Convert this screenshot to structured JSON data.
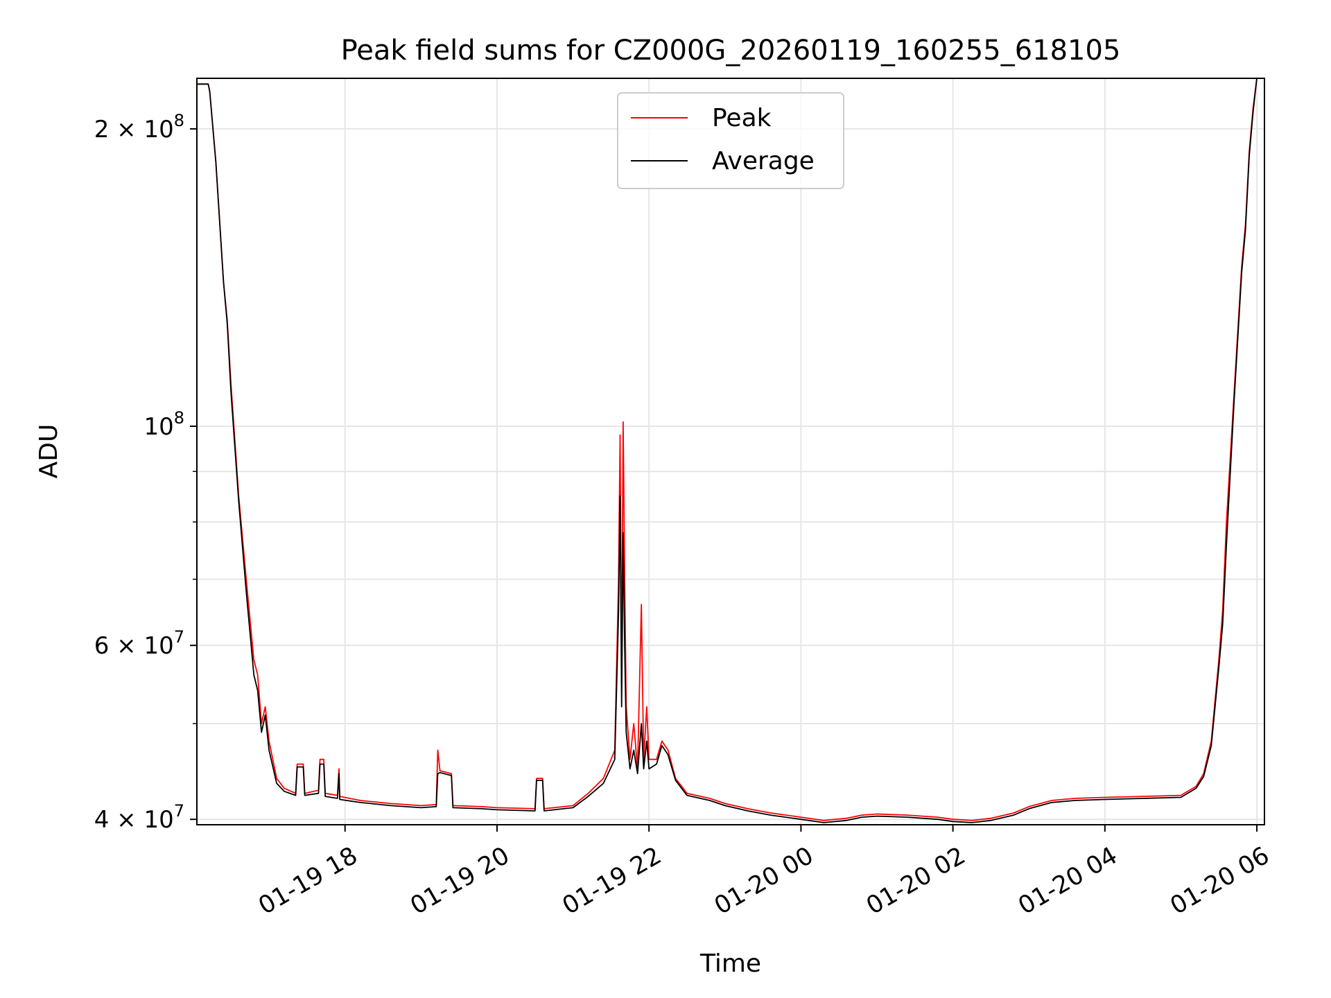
{
  "chart_data": {
    "type": "line",
    "title": "Peak field sums for CZ000G_20260119_160255_618105",
    "xlabel": "Time",
    "ylabel": "ADU",
    "yscale": "log",
    "ylim": [
      39500000,
      225000000
    ],
    "xlim_hours": [
      16.05,
      30.1
    ],
    "grid": true,
    "legend_position": "upper center",
    "x_ticks": [
      {
        "hour": 18,
        "label": "01-19 18"
      },
      {
        "hour": 20,
        "label": "01-19 20"
      },
      {
        "hour": 22,
        "label": "01-19 22"
      },
      {
        "hour": 24,
        "label": "01-20 00"
      },
      {
        "hour": 26,
        "label": "01-20 02"
      },
      {
        "hour": 28,
        "label": "01-20 04"
      },
      {
        "hour": 30,
        "label": "01-20 06"
      }
    ],
    "y_major_ticks": [
      {
        "value": 40000000,
        "mantissa": "4",
        "exp": "7"
      },
      {
        "value": 60000000,
        "mantissa": "6",
        "exp": "7"
      },
      {
        "value": 100000000,
        "mantissa": "",
        "exp": "8"
      },
      {
        "value": 200000000,
        "mantissa": "2",
        "exp": "8"
      }
    ],
    "y_minor_ticks": [
      50000000,
      70000000,
      80000000,
      90000000
    ],
    "x_time_unit": "hours after 2026-01-19 00:00 UTC",
    "series": [
      {
        "name": "Peak",
        "color": "#ff0000",
        "points": [
          [
            16.05,
            222000000
          ],
          [
            16.2,
            222000000
          ],
          [
            16.22,
            218000000
          ],
          [
            16.3,
            185000000
          ],
          [
            16.4,
            140000000
          ],
          [
            16.45,
            128000000
          ],
          [
            16.5,
            110000000
          ],
          [
            16.6,
            85000000
          ],
          [
            16.7,
            70000000
          ],
          [
            16.8,
            58000000
          ],
          [
            16.85,
            56000000
          ],
          [
            16.9,
            50000000
          ],
          [
            16.95,
            52000000
          ],
          [
            17.0,
            48000000
          ],
          [
            17.1,
            44000000
          ],
          [
            17.2,
            43000000
          ],
          [
            17.35,
            42500000
          ],
          [
            17.37,
            45500000
          ],
          [
            17.45,
            45500000
          ],
          [
            17.47,
            42500000
          ],
          [
            17.65,
            42800000
          ],
          [
            17.67,
            46000000
          ],
          [
            17.72,
            46000000
          ],
          [
            17.74,
            42500000
          ],
          [
            17.9,
            42300000
          ],
          [
            17.92,
            45000000
          ],
          [
            17.93,
            42200000
          ],
          [
            18.2,
            41800000
          ],
          [
            18.6,
            41500000
          ],
          [
            19.0,
            41300000
          ],
          [
            19.2,
            41400000
          ],
          [
            19.22,
            47000000
          ],
          [
            19.25,
            44800000
          ],
          [
            19.4,
            44500000
          ],
          [
            19.42,
            41300000
          ],
          [
            19.8,
            41200000
          ],
          [
            20.0,
            41100000
          ],
          [
            20.5,
            41000000
          ],
          [
            20.52,
            44000000
          ],
          [
            20.6,
            44000000
          ],
          [
            20.62,
            41000000
          ],
          [
            21.0,
            41300000
          ],
          [
            21.2,
            42500000
          ],
          [
            21.4,
            44000000
          ],
          [
            21.55,
            47000000
          ],
          [
            21.6,
            70000000
          ],
          [
            21.62,
            98000000
          ],
          [
            21.64,
            55000000
          ],
          [
            21.66,
            101000000
          ],
          [
            21.68,
            70000000
          ],
          [
            21.7,
            52000000
          ],
          [
            21.75,
            46000000
          ],
          [
            21.8,
            50000000
          ],
          [
            21.85,
            45000000
          ],
          [
            21.9,
            66000000
          ],
          [
            21.93,
            46000000
          ],
          [
            21.97,
            52000000
          ],
          [
            22.0,
            46000000
          ],
          [
            22.1,
            46000000
          ],
          [
            22.17,
            48000000
          ],
          [
            22.25,
            47000000
          ],
          [
            22.35,
            44000000
          ],
          [
            22.5,
            42500000
          ],
          [
            22.8,
            42000000
          ],
          [
            23.0,
            41500000
          ],
          [
            23.3,
            41000000
          ],
          [
            23.6,
            40600000
          ],
          [
            24.0,
            40200000
          ],
          [
            24.3,
            39900000
          ],
          [
            24.6,
            40100000
          ],
          [
            24.8,
            40400000
          ],
          [
            25.0,
            40500000
          ],
          [
            25.4,
            40400000
          ],
          [
            25.8,
            40200000
          ],
          [
            26.0,
            40000000
          ],
          [
            26.25,
            39900000
          ],
          [
            26.5,
            40100000
          ],
          [
            26.8,
            40600000
          ],
          [
            27.0,
            41200000
          ],
          [
            27.3,
            41800000
          ],
          [
            27.6,
            42000000
          ],
          [
            28.0,
            42100000
          ],
          [
            28.5,
            42200000
          ],
          [
            29.0,
            42300000
          ],
          [
            29.2,
            43200000
          ],
          [
            29.3,
            44500000
          ],
          [
            29.4,
            48000000
          ],
          [
            29.5,
            58000000
          ],
          [
            29.55,
            65000000
          ],
          [
            29.6,
            80000000
          ],
          [
            29.7,
            108000000
          ],
          [
            29.8,
            145000000
          ],
          [
            29.85,
            160000000
          ],
          [
            29.9,
            190000000
          ],
          [
            29.95,
            210000000
          ],
          [
            30.0,
            225000000
          ]
        ]
      },
      {
        "name": "Average",
        "color": "#000000",
        "points": [
          [
            16.05,
            222000000
          ],
          [
            16.2,
            222000000
          ],
          [
            16.22,
            218000000
          ],
          [
            16.3,
            185000000
          ],
          [
            16.4,
            140000000
          ],
          [
            16.45,
            127000000
          ],
          [
            16.5,
            108000000
          ],
          [
            16.6,
            84000000
          ],
          [
            16.7,
            68000000
          ],
          [
            16.8,
            56000000
          ],
          [
            16.85,
            54000000
          ],
          [
            16.9,
            49000000
          ],
          [
            16.95,
            51000000
          ],
          [
            17.0,
            47000000
          ],
          [
            17.1,
            43500000
          ],
          [
            17.2,
            42700000
          ],
          [
            17.35,
            42300000
          ],
          [
            17.37,
            45200000
          ],
          [
            17.45,
            45200000
          ],
          [
            17.47,
            42300000
          ],
          [
            17.65,
            42500000
          ],
          [
            17.67,
            45500000
          ],
          [
            17.72,
            45500000
          ],
          [
            17.74,
            42200000
          ],
          [
            17.9,
            42000000
          ],
          [
            17.92,
            44500000
          ],
          [
            17.93,
            41900000
          ],
          [
            18.2,
            41600000
          ],
          [
            18.6,
            41300000
          ],
          [
            19.0,
            41100000
          ],
          [
            19.2,
            41200000
          ],
          [
            19.22,
            44500000
          ],
          [
            19.25,
            44600000
          ],
          [
            19.4,
            44300000
          ],
          [
            19.42,
            41100000
          ],
          [
            19.8,
            41000000
          ],
          [
            20.0,
            40900000
          ],
          [
            20.5,
            40800000
          ],
          [
            20.52,
            43800000
          ],
          [
            20.6,
            43800000
          ],
          [
            20.62,
            40800000
          ],
          [
            21.0,
            41100000
          ],
          [
            21.2,
            42200000
          ],
          [
            21.4,
            43500000
          ],
          [
            21.55,
            46000000
          ],
          [
            21.6,
            65000000
          ],
          [
            21.62,
            85000000
          ],
          [
            21.64,
            52000000
          ],
          [
            21.66,
            78000000
          ],
          [
            21.68,
            60000000
          ],
          [
            21.7,
            49000000
          ],
          [
            21.75,
            45000000
          ],
          [
            21.8,
            47000000
          ],
          [
            21.85,
            44500000
          ],
          [
            21.9,
            50000000
          ],
          [
            21.93,
            45000000
          ],
          [
            21.97,
            48000000
          ],
          [
            22.0,
            45000000
          ],
          [
            22.1,
            45500000
          ],
          [
            22.17,
            47500000
          ],
          [
            22.25,
            46500000
          ],
          [
            22.35,
            43800000
          ],
          [
            22.5,
            42300000
          ],
          [
            22.8,
            41800000
          ],
          [
            23.0,
            41300000
          ],
          [
            23.3,
            40800000
          ],
          [
            23.6,
            40400000
          ],
          [
            24.0,
            40000000
          ],
          [
            24.3,
            39700000
          ],
          [
            24.6,
            39900000
          ],
          [
            24.8,
            40200000
          ],
          [
            25.0,
            40300000
          ],
          [
            25.4,
            40200000
          ],
          [
            25.8,
            40000000
          ],
          [
            26.0,
            39800000
          ],
          [
            26.25,
            39700000
          ],
          [
            26.5,
            39900000
          ],
          [
            26.8,
            40400000
          ],
          [
            27.0,
            41000000
          ],
          [
            27.3,
            41600000
          ],
          [
            27.6,
            41800000
          ],
          [
            28.0,
            41900000
          ],
          [
            28.5,
            42000000
          ],
          [
            29.0,
            42100000
          ],
          [
            29.2,
            43000000
          ],
          [
            29.3,
            44200000
          ],
          [
            29.4,
            47500000
          ],
          [
            29.5,
            57000000
          ],
          [
            29.55,
            63000000
          ],
          [
            29.6,
            76000000
          ],
          [
            29.7,
            106000000
          ],
          [
            29.8,
            143000000
          ],
          [
            29.85,
            158000000
          ],
          [
            29.9,
            188000000
          ],
          [
            29.95,
            208000000
          ],
          [
            30.0,
            225000000
          ]
        ]
      }
    ]
  }
}
